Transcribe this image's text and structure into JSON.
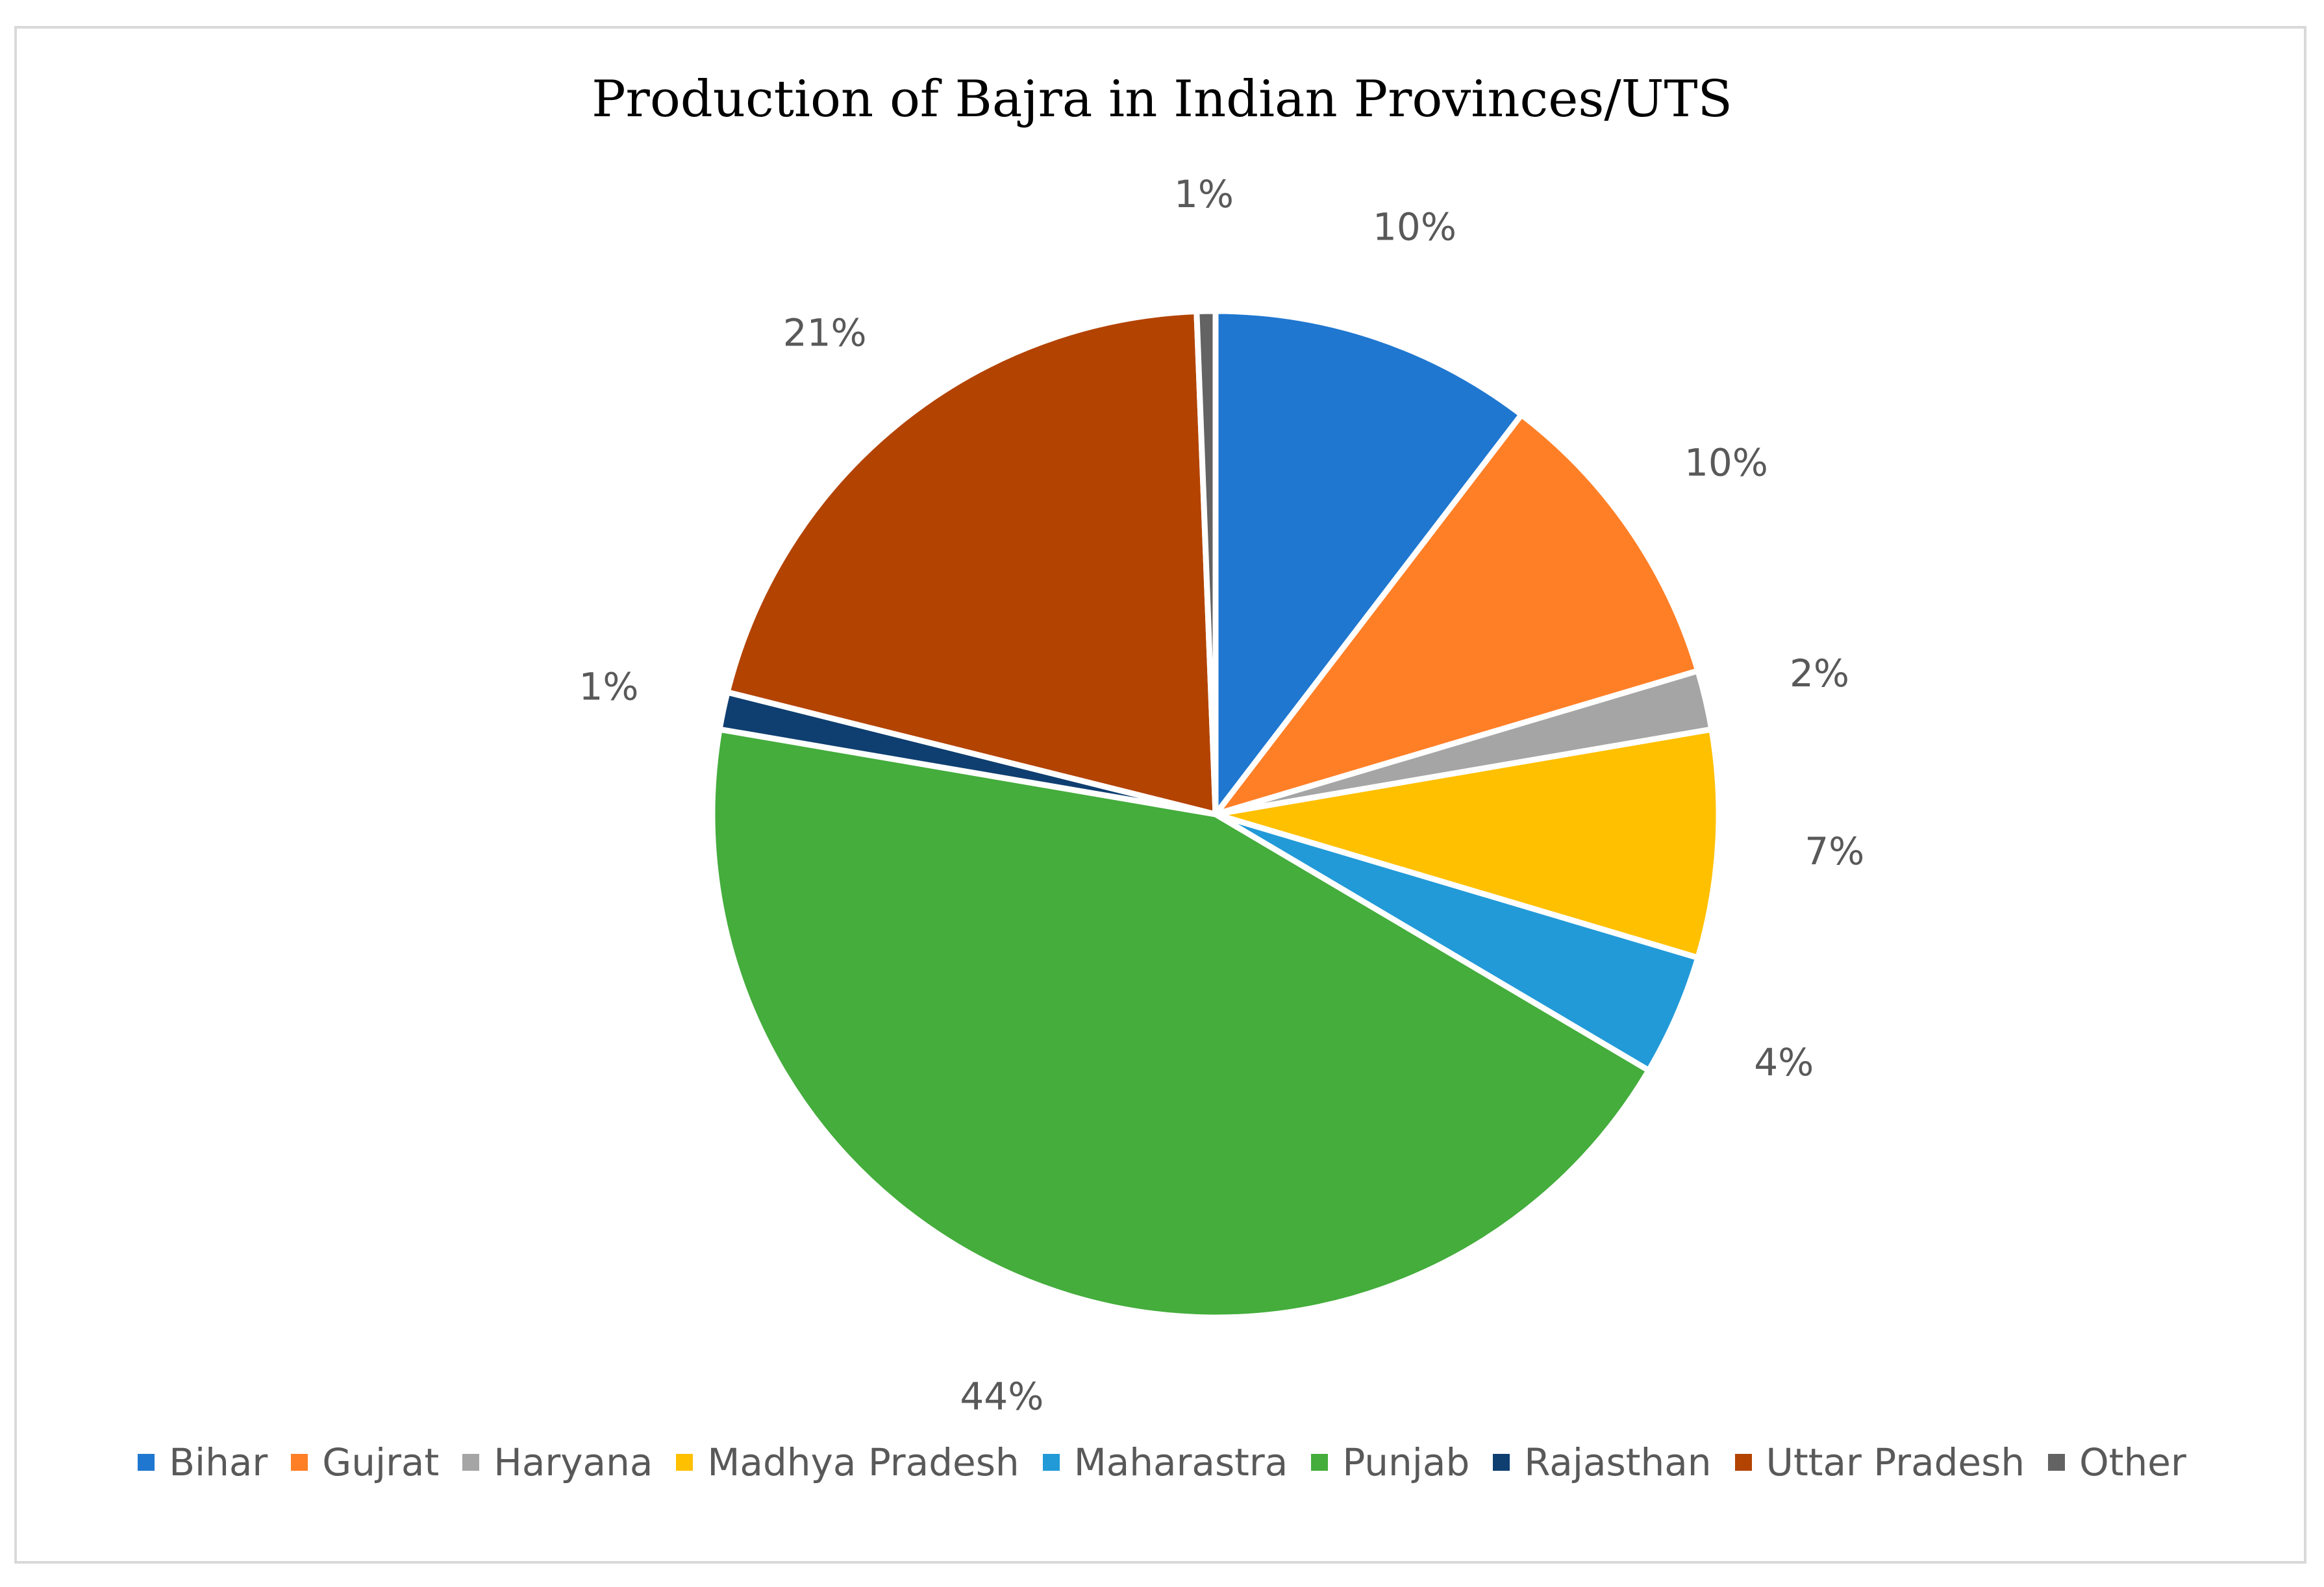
{
  "chart_data": {
    "type": "pie",
    "title": "Production of Bajra in Indian Provinces/UTS",
    "categories": [
      "Bihar",
      "Gujrat",
      "Haryana",
      "Madhya Pradesh",
      "Maharastra",
      "Punjab",
      "Rajasthan",
      "Uttar Pradesh",
      "Other"
    ],
    "values": [
      10.4,
      10.0,
      1.9,
      7.3,
      3.9,
      44.2,
      1.2,
      20.5,
      0.6
    ],
    "labels": [
      "10%",
      "10%",
      "2%",
      "7%",
      "4%",
      "44%",
      "1%",
      "21%",
      "1%"
    ],
    "colors": [
      "#1f77d0",
      "#ff7f27",
      "#a5a5a5",
      "#ffc000",
      "#229ad8",
      "#44ad3c",
      "#0f3f70",
      "#b34300",
      "#636363"
    ],
    "legend_position": "bottom"
  }
}
